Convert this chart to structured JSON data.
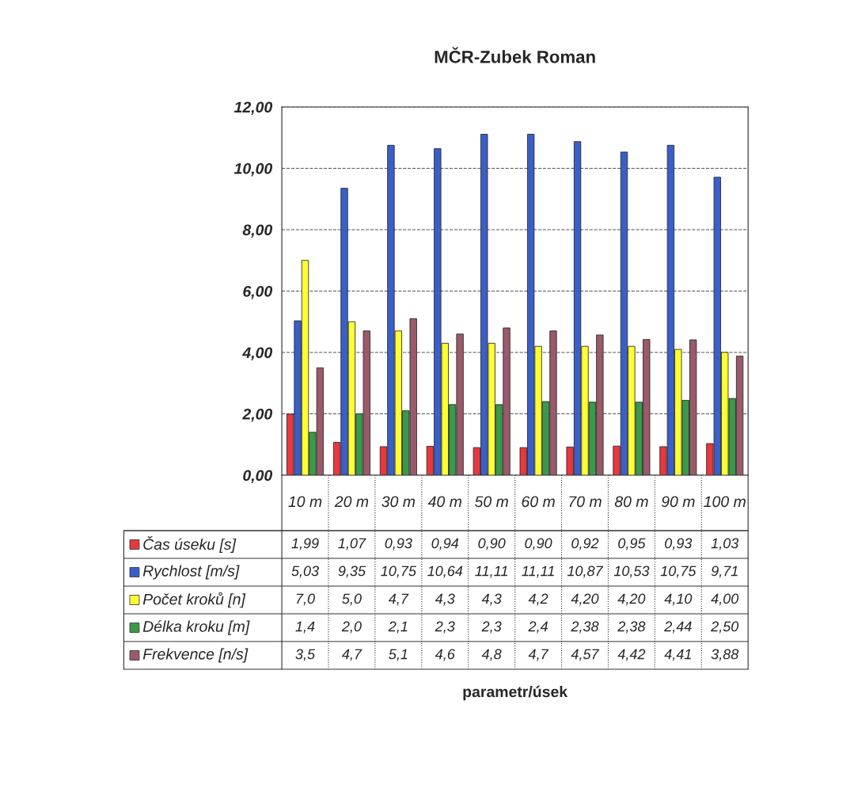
{
  "chart_data": {
    "type": "bar",
    "title": "MČR-Zubek Roman",
    "annotations": [
      "parametr/úsek"
    ],
    "categories": [
      "10 m",
      "20 m",
      "30 m",
      "40 m",
      "50 m",
      "60 m",
      "70 m",
      "80 m",
      "90 m",
      "100 m"
    ],
    "series": [
      {
        "name": "Čas úseku [s]",
        "color": "#e8383d",
        "values": [
          1.99,
          1.07,
          0.93,
          0.94,
          0.9,
          0.9,
          0.92,
          0.95,
          0.93,
          1.03
        ],
        "value_labels": [
          "1,99",
          "1,07",
          "0,93",
          "0,94",
          "0,90",
          "0,90",
          "0,92",
          "0,95",
          "0,93",
          "1,03"
        ]
      },
      {
        "name": "Rychlost [m/s]",
        "color": "#3a5fc8",
        "values": [
          5.03,
          9.35,
          10.75,
          10.64,
          11.11,
          11.11,
          10.87,
          10.53,
          10.75,
          9.71
        ],
        "value_labels": [
          "5,03",
          "9,35",
          "10,75",
          "10,64",
          "11,11",
          "11,11",
          "10,87",
          "10,53",
          "10,75",
          "9,71"
        ]
      },
      {
        "name": "Počet kroků [n]",
        "color": "#ffff33",
        "values": [
          7.0,
          5.0,
          4.7,
          4.3,
          4.3,
          4.2,
          4.2,
          4.2,
          4.1,
          4.0
        ],
        "value_labels": [
          "7,0",
          "5,0",
          "4,7",
          "4,3",
          "4,3",
          "4,2",
          "4,20",
          "4,20",
          "4,10",
          "4,00"
        ]
      },
      {
        "name": "Délka kroku [m]",
        "color": "#3a9a4a",
        "values": [
          1.4,
          2.0,
          2.1,
          2.3,
          2.3,
          2.4,
          2.38,
          2.38,
          2.44,
          2.5
        ],
        "value_labels": [
          "1,4",
          "2,0",
          "2,1",
          "2,3",
          "2,3",
          "2,4",
          "2,38",
          "2,38",
          "2,44",
          "2,50"
        ]
      },
      {
        "name": "Frekvence [n/s]",
        "color": "#9a5a6a",
        "values": [
          3.5,
          4.7,
          5.1,
          4.6,
          4.8,
          4.7,
          4.57,
          4.42,
          4.41,
          3.88
        ],
        "value_labels": [
          "3,5",
          "4,7",
          "5,1",
          "4,6",
          "4,8",
          "4,7",
          "4,57",
          "4,42",
          "4,41",
          "3,88"
        ]
      }
    ],
    "ylim": [
      0,
      12
    ],
    "yticks": [
      {
        "value": 0,
        "label": "0,00"
      },
      {
        "value": 2,
        "label": "2,00"
      },
      {
        "value": 4,
        "label": "4,00"
      },
      {
        "value": 6,
        "label": "6,00"
      },
      {
        "value": 8,
        "label": "8,00"
      },
      {
        "value": 10,
        "label": "10,00"
      },
      {
        "value": 12,
        "label": "12,00"
      }
    ],
    "grid": "y",
    "legend": "bottom"
  }
}
